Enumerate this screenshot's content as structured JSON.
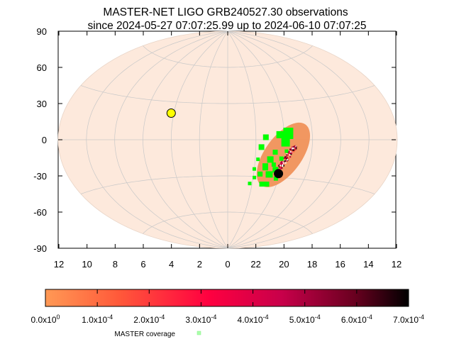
{
  "chart_data": {
    "type": "scatter",
    "title": "MASTER-NET LIGO GRB240527.30 observations",
    "subtitle": "since 2024-05-27 07:07:25.99 up to 2024-06-10 07:07:25",
    "projection": "aitoff",
    "x_axis": {
      "ticks": [
        "12",
        "10",
        "8",
        "6",
        "4",
        "2",
        "0",
        "22",
        "20",
        "18",
        "16",
        "14",
        "12"
      ],
      "unit": "hours RA, decreasing to the right"
    },
    "y_axis": {
      "ticks": [
        "90",
        "60",
        "30",
        "0",
        "-30",
        "-60",
        "-90"
      ],
      "ylim": [
        -90,
        90
      ]
    },
    "grid": true,
    "sky_background_color": "#fde9dc",
    "localization_color": "#f0925a",
    "markers": [
      {
        "name": "sun",
        "ra_h": 4.2,
        "dec": 21,
        "color": "#ffff00"
      },
      {
        "name": "moon",
        "ra_h": 20.1,
        "dec": -27,
        "color": "#000000"
      }
    ],
    "localization_region": {
      "ra_h": [
        18.4,
        21.6
      ],
      "dec": [
        -40,
        15
      ]
    },
    "master_coverage_color": "#00ff00",
    "colorbar": {
      "tick_labels": [
        {
          "mant": "0.0x10",
          "exp": "0"
        },
        {
          "mant": "1.0x10",
          "exp": "-4"
        },
        {
          "mant": "2.0x10",
          "exp": "-4"
        },
        {
          "mant": "3.0x10",
          "exp": "-4"
        },
        {
          "mant": "4.0x10",
          "exp": "-4"
        },
        {
          "mant": "5.0x10",
          "exp": "-4"
        },
        {
          "mant": "6.0x10",
          "exp": "-4"
        },
        {
          "mant": "7.0x10",
          "exp": "-4"
        }
      ],
      "colors": [
        "#ff9955",
        "#ff3a3a",
        "#e80050",
        "#b0003a",
        "#5a001c",
        "#000000"
      ]
    },
    "legend": {
      "label": "MASTER coverage",
      "placement": "bottom"
    }
  }
}
